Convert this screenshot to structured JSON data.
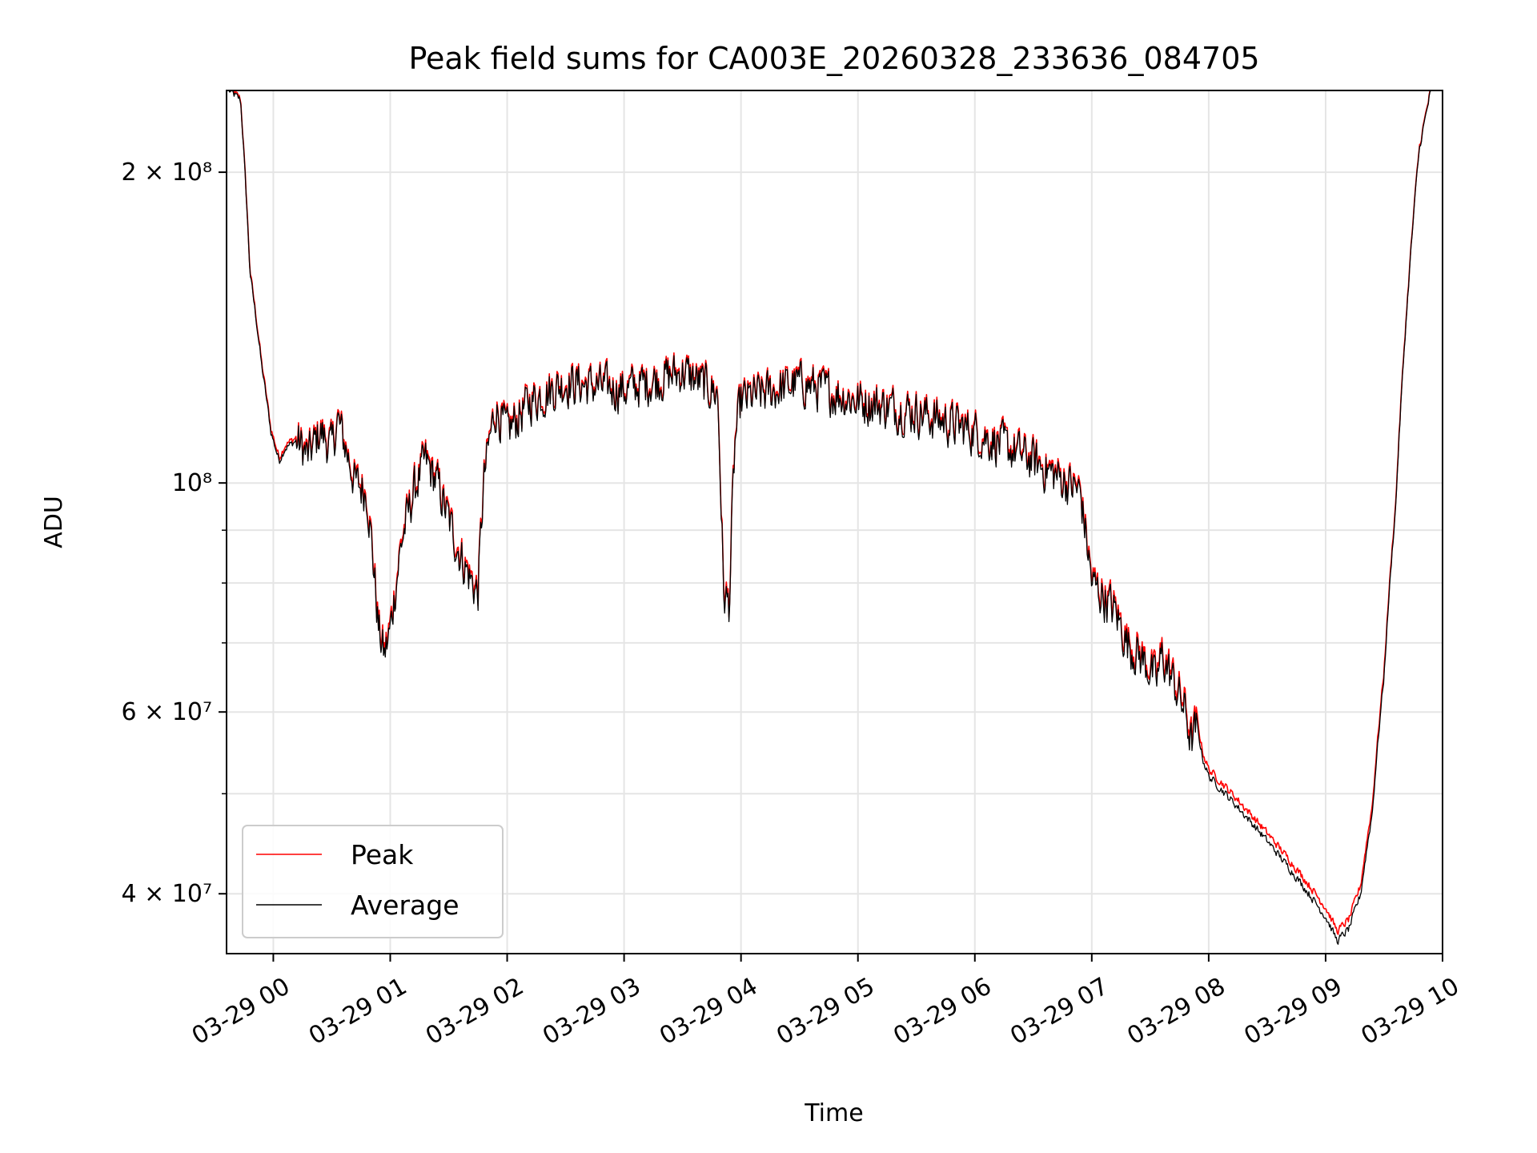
{
  "chart_data": {
    "type": "line",
    "title": "Peak field sums for CA003E_20260328_233636_084705",
    "xlabel": "Time",
    "ylabel": "ADU",
    "x_range_hours": [
      -0.4,
      10.0
    ],
    "y_scale": "log",
    "ylim": [
      35000000,
      240000000
    ],
    "x_ticks": [
      {
        "label": "03-29 00",
        "hour": 0
      },
      {
        "label": "03-29 01",
        "hour": 1
      },
      {
        "label": "03-29 02",
        "hour": 2
      },
      {
        "label": "03-29 03",
        "hour": 3
      },
      {
        "label": "03-29 04",
        "hour": 4
      },
      {
        "label": "03-29 05",
        "hour": 5
      },
      {
        "label": "03-29 06",
        "hour": 6
      },
      {
        "label": "03-29 07",
        "hour": 7
      },
      {
        "label": "03-29 08",
        "hour": 8
      },
      {
        "label": "03-29 09",
        "hour": 9
      },
      {
        "label": "03-29 10",
        "hour": 10
      }
    ],
    "y_ticks": [
      {
        "label": "2 × 10⁸",
        "value": 200000000
      },
      {
        "label": "10⁸",
        "value": 100000000
      },
      {
        "label": "6 × 10⁷",
        "value": 60000000
      },
      {
        "label": "4 × 10⁷",
        "value": 40000000
      }
    ],
    "y_minor_gridlines": [
      50000000,
      70000000,
      80000000,
      90000000
    ],
    "grid": true,
    "legend_position": "lower-left",
    "series": [
      {
        "name": "Peak",
        "color": "#ff0000",
        "offset_millions": 0.8
      },
      {
        "name": "Average",
        "color": "#000000",
        "offset_millions": 0.0
      }
    ],
    "profile": {
      "hours": [
        -0.38,
        -0.28,
        -0.2,
        -0.1,
        -0.02,
        0.05,
        0.1,
        0.2,
        0.3,
        0.4,
        0.5,
        0.55,
        0.6,
        0.7,
        0.8,
        0.9,
        0.95,
        1.0,
        1.05,
        1.1,
        1.2,
        1.3,
        1.4,
        1.5,
        1.6,
        1.7,
        1.75,
        1.8,
        1.85,
        1.9,
        2.0,
        2.2,
        2.5,
        3.0,
        3.5,
        3.8,
        3.85,
        3.9,
        3.95,
        4.0,
        4.5,
        5.0,
        5.5,
        6.0,
        6.5,
        6.9,
        7.0,
        7.2,
        7.3,
        7.4,
        7.5,
        7.55,
        7.6,
        7.7,
        7.8,
        7.85,
        7.9,
        7.95,
        8.0,
        8.5,
        9.0,
        9.1,
        9.2,
        9.3,
        9.4,
        9.5,
        9.6,
        9.7,
        9.8,
        9.9
      ],
      "adu_millions": [
        240,
        235,
        160,
        130,
        112,
        105,
        108,
        110,
        106,
        112,
        108,
        115,
        110,
        100,
        98,
        72,
        68,
        72,
        80,
        88,
        98,
        105,
        100,
        92,
        85,
        80,
        78,
        100,
        110,
        118,
        112,
        120,
        125,
        123,
        128,
        122,
        78,
        76,
        110,
        120,
        125,
        120,
        117,
        112,
        105,
        98,
        80,
        75,
        70,
        68,
        66,
        64,
        68,
        64,
        60,
        56,
        58,
        54,
        52,
        45,
        38,
        36,
        37,
        40,
        48,
        65,
        95,
        150,
        210,
        240
      ],
      "note": "Smoothed curve traced from the plot; the rendered series add high-frequency jitter."
    }
  }
}
